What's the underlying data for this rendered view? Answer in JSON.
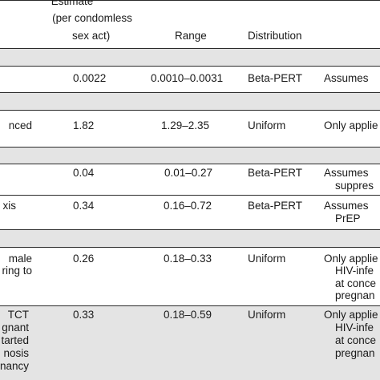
{
  "header": {
    "estimate_line1": "Estimate",
    "estimate_line2": "(per condomless",
    "estimate_line3": "sex act)",
    "range": "Range",
    "distribution": "Distribution"
  },
  "rows": [
    {
      "param": "",
      "estimate": "0.0022",
      "range": "0.0010–0.0031",
      "dist": "Beta-PERT",
      "notes": [
        "Assumes"
      ]
    },
    {
      "param": "nced",
      "estimate": "1.82",
      "range": "1.29–2.35",
      "dist": "Uniform",
      "notes": [
        "Only applie"
      ]
    },
    {
      "param": "",
      "estimate": "0.04",
      "range": "0.01–0.27",
      "dist": "Beta-PERT",
      "notes": [
        "Assumes",
        "suppres"
      ]
    },
    {
      "param": "xis",
      "estimate": "0.34",
      "range": "0.16–0.72",
      "dist": "Beta-PERT",
      "notes": [
        "Assumes",
        "PrEP"
      ]
    },
    {
      "param_lines": [
        "male",
        "ring to"
      ],
      "estimate": "0.26",
      "range": "0.18–0.33",
      "dist": "Uniform",
      "notes": [
        "Only applie",
        "HIV-infe",
        "at conce",
        "pregnan"
      ]
    },
    {
      "param_lines": [
        "TCT",
        "gnant",
        "tarted",
        "nosis",
        "nancy"
      ],
      "estimate": "0.33",
      "range": "0.18–0.59",
      "dist": "Uniform",
      "notes": [
        "Only applie",
        "HIV-infe",
        "at conce",
        "pregnan"
      ]
    }
  ]
}
